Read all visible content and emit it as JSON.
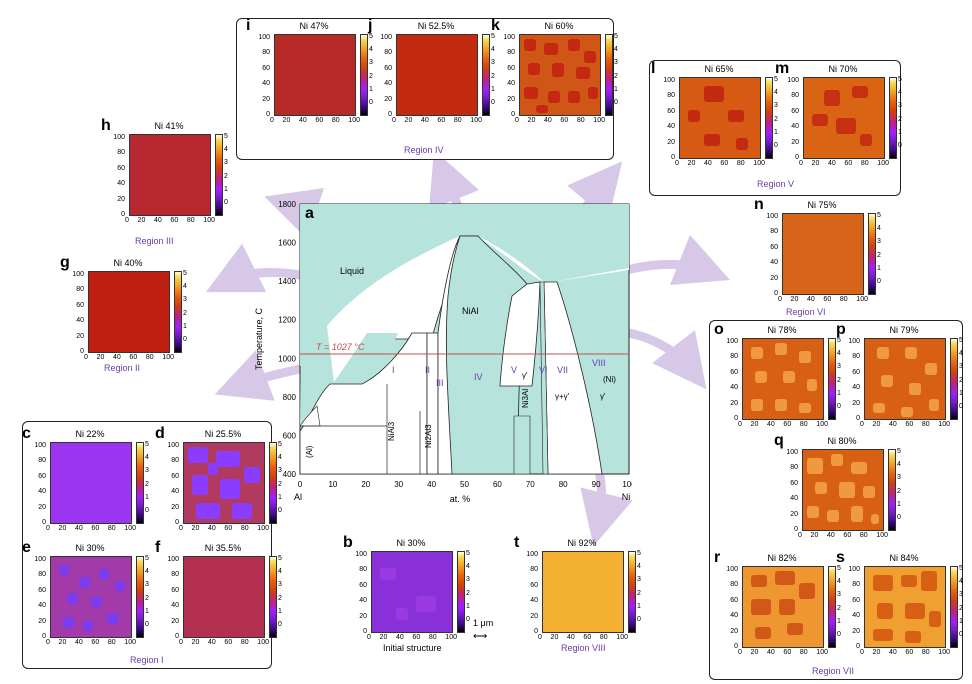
{
  "panels": {
    "b": {
      "letter": "b",
      "title": "Ni 30%",
      "caption": "Initial structure",
      "color": "#8a30d8",
      "blob": "#9a3ae0"
    },
    "c": {
      "letter": "c",
      "title": "Ni 22%",
      "color": "#9b35f0",
      "blob": "#a040ff"
    },
    "d": {
      "letter": "d",
      "title": "Ni 25.5%",
      "color": "#b03a60",
      "blob": "#8a3cff"
    },
    "e": {
      "letter": "e",
      "title": "Ni 30%",
      "color": "#a33aaa",
      "blob": "#7a3cf0"
    },
    "f": {
      "letter": "f",
      "title": "Ni 35.5%",
      "color": "#b33050",
      "blob": "#b33050"
    },
    "g": {
      "letter": "g",
      "title": "Ni 40%",
      "color": "#c02012",
      "blob": "#c02012"
    },
    "h": {
      "letter": "h",
      "title": "Ni 41%",
      "color": "#b82830",
      "blob": "#b82830"
    },
    "i": {
      "letter": "i",
      "title": "Ni 47%",
      "color": "#b82a28",
      "blob": "#b82a28"
    },
    "j": {
      "letter": "j",
      "title": "Ni 52.5%",
      "color": "#c32a10",
      "blob": "#c32a10"
    },
    "k": {
      "letter": "k",
      "title": "Ni 60%",
      "color": "#d05618",
      "blob": "#c42810"
    },
    "l": {
      "letter": "l",
      "title": "Ni 65%",
      "color": "#d65a14",
      "blob": "#c42a10"
    },
    "m": {
      "letter": "m",
      "title": "Ni 70%",
      "color": "#d86414",
      "blob": "#c43010"
    },
    "n": {
      "letter": "n",
      "title": "Ni 75%",
      "color": "#d8641a",
      "blob": "#d8641a"
    },
    "o": {
      "letter": "o",
      "title": "Ni 78%",
      "color": "#d86014",
      "blob": "#f09a40"
    },
    "p": {
      "letter": "p",
      "title": "Ni 79%",
      "color": "#d86014",
      "blob": "#f09a40"
    },
    "q": {
      "letter": "q",
      "title": "Ni 80%",
      "color": "#d86014",
      "blob": "#f09a40"
    },
    "r": {
      "letter": "r",
      "title": "Ni 82%",
      "color": "#ee9630",
      "blob": "#d25818"
    },
    "s": {
      "letter": "s",
      "title": "Ni 84%",
      "color": "#f0a030",
      "blob": "#d86014"
    },
    "t": {
      "letter": "t",
      "title": "Ni 92%",
      "color": "#f4b030",
      "blob": "#f4b030"
    }
  },
  "map_axis": {
    "y_ticks": [
      "100",
      "80",
      "60",
      "40",
      "20",
      "0"
    ],
    "x_ticks": [
      "0",
      "20",
      "40",
      "60",
      "80",
      "100"
    ],
    "cbar_ticks": [
      "5",
      "4",
      "3",
      "2",
      "1",
      "0"
    ]
  },
  "regions": {
    "r1": "Region I",
    "r2": "Region II",
    "r3": "Region III",
    "r4": "Region IV",
    "r5": "Region V",
    "r6": "Region VI",
    "r7": "Region VII",
    "r8": "Region VIII"
  },
  "scale_bar": "1 μm",
  "phase_diagram": {
    "letter": "a",
    "y_label": "Temperature, C",
    "x_label": "at. %",
    "x_left": "Al",
    "x_right": "Ni",
    "y_ticks": [
      "1800",
      "1600",
      "1400",
      "1200",
      "1000",
      "800",
      "600",
      "400"
    ],
    "x_ticks": [
      "0",
      "10",
      "20",
      "30",
      "40",
      "50",
      "60",
      "70",
      "80",
      "90",
      "100"
    ],
    "liquid": "Liquid",
    "nial": "NiAl",
    "temp_line": "T = 1027 °C",
    "al_label": "(Al)",
    "nial3": "NiAl3",
    "ni2al3": "Ni2Al3",
    "ni3al": "Ni3Al",
    "ni_label": "(Ni)",
    "gamma_prime": "γ'",
    "gamma_gamma": "γ+γ'",
    "gamma_prime2": "γ'",
    "roman": [
      "I",
      "II",
      "III",
      "IV",
      "V",
      "VI",
      "VII",
      "VIII"
    ],
    "bg_color": "#b6e4dc",
    "line_color": "#c0504d"
  }
}
